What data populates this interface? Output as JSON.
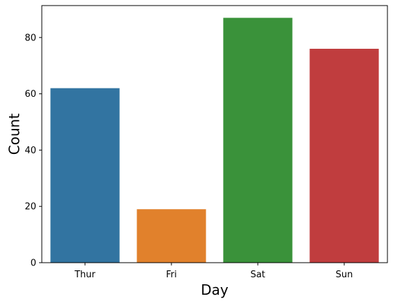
{
  "chart_data": {
    "type": "bar",
    "title": "",
    "xlabel": "Day",
    "ylabel": "Count",
    "categories": [
      "Thur",
      "Fri",
      "Sat",
      "Sun"
    ],
    "values": [
      62,
      19,
      87,
      76
    ],
    "colors": [
      "#3274a1",
      "#e1812c",
      "#3a923a",
      "#c03d3e"
    ],
    "ylim": [
      0,
      91.35
    ],
    "yticks": [
      0,
      20,
      40,
      60,
      80
    ],
    "grid": false,
    "legend": "none"
  }
}
